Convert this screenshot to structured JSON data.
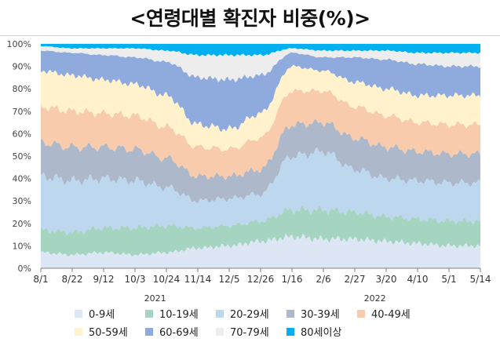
{
  "chart_data": {
    "type": "area",
    "title": "<연령대별 확진자 비중(%)>",
    "stacked": true,
    "percent": true,
    "ylim": [
      0,
      100
    ],
    "yticks": [
      "0%",
      "10%",
      "20%",
      "30%",
      "40%",
      "50%",
      "60%",
      "70%",
      "80%",
      "90%",
      "100%"
    ],
    "grid": true,
    "legend_position": "bottom",
    "x_tick_labels": [
      "8/1",
      "8/22",
      "9/12",
      "10/3",
      "10/24",
      "11/14",
      "12/5",
      "12/26",
      "1/16",
      "2/6",
      "2/27",
      "3/20",
      "4/10",
      "5/1",
      "5/14"
    ],
    "year_labels": [
      "2021",
      "2022"
    ],
    "x": [
      "2021-08-01",
      "2021-08-22",
      "2021-09-12",
      "2021-10-03",
      "2021-10-24",
      "2021-11-14",
      "2021-12-05",
      "2021-12-26",
      "2022-01-16",
      "2022-02-06",
      "2022-02-27",
      "2022-03-20",
      "2022-04-10",
      "2022-05-01",
      "2022-05-14"
    ],
    "series": [
      {
        "name": "0-9세",
        "color": "#dce6f4",
        "values": [
          7,
          6,
          7,
          6,
          7,
          9,
          10,
          12,
          14,
          13,
          13,
          12,
          11,
          10,
          10
        ]
      },
      {
        "name": "10-19세",
        "color": "#a5d4c0",
        "values": [
          10,
          10,
          11,
          12,
          12,
          9,
          9,
          9,
          12,
          13,
          12,
          11,
          11,
          11,
          11
        ]
      },
      {
        "name": "20-29세",
        "color": "#bdd7ee",
        "values": [
          24,
          23,
          22,
          21,
          17,
          12,
          12,
          12,
          24,
          26,
          19,
          17,
          17,
          17,
          17
        ]
      },
      {
        "name": "30-39세",
        "color": "#adb9ca",
        "values": [
          15,
          15,
          14,
          14,
          13,
          11,
          10,
          11,
          14,
          13,
          14,
          14,
          13,
          13,
          13
        ]
      },
      {
        "name": "40-49세",
        "color": "#f8cbad",
        "values": [
          16,
          16,
          15,
          15,
          14,
          13,
          12,
          14,
          15,
          14,
          14,
          14,
          13,
          13,
          13
        ]
      },
      {
        "name": "50-59세",
        "color": "#fff2cc",
        "values": [
          16,
          16,
          15,
          14,
          14,
          10,
          9,
          11,
          11,
          9,
          11,
          12,
          12,
          13,
          13
        ]
      },
      {
        "name": "60-69세",
        "color": "#8faadc",
        "values": [
          9,
          10,
          11,
          12,
          15,
          21,
          22,
          17,
          6,
          6,
          11,
          13,
          14,
          13,
          13
        ]
      },
      {
        "name": "70-79세",
        "color": "#ededed",
        "values": [
          2,
          2,
          3,
          4,
          5,
          10,
          11,
          9,
          2,
          3,
          3,
          4,
          5,
          6,
          6
        ]
      },
      {
        "name": "80세이상",
        "color": "#00b0f0",
        "values": [
          1,
          2,
          2,
          2,
          3,
          5,
          5,
          5,
          2,
          3,
          3,
          3,
          4,
          4,
          4
        ]
      }
    ]
  }
}
